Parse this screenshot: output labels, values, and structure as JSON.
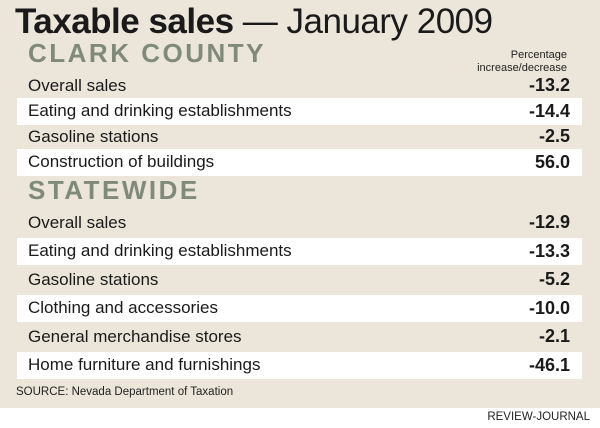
{
  "title_bold": "Taxable sales",
  "title_rest": " — January 2009",
  "column_header_line1": "Percentage",
  "column_header_line2": "increase/decrease",
  "source": "SOURCE: Nevada Department of Taxation",
  "credit": "REVIEW-JOURNAL",
  "colors": {
    "background": "#ece6da",
    "section": "#7f8a7a",
    "row_highlight": "#ffffff"
  },
  "chart_data": {
    "type": "table",
    "title": "Taxable sales — January 2009",
    "columns": [
      "Category",
      "Percentage increase/decrease"
    ],
    "sections": [
      {
        "name": "CLARK COUNTY",
        "rows": [
          {
            "label": "Overall sales",
            "value": "-13.2"
          },
          {
            "label": "Eating and drinking establishments",
            "value": "-14.4"
          },
          {
            "label": "Gasoline stations",
            "value": "-2.5"
          },
          {
            "label": "Construction of buildings",
            "value": "56.0"
          }
        ]
      },
      {
        "name": "STATEWIDE",
        "rows": [
          {
            "label": "Overall sales",
            "value": "-12.9"
          },
          {
            "label": "Eating and drinking establishments",
            "value": "-13.3"
          },
          {
            "label": "Gasoline stations",
            "value": "-5.2"
          },
          {
            "label": "Clothing and accessories",
            "value": "-10.0"
          },
          {
            "label": "General merchandise stores",
            "value": "-2.1"
          },
          {
            "label": "Home furniture and furnishings",
            "value": "-46.1"
          }
        ]
      }
    ]
  }
}
